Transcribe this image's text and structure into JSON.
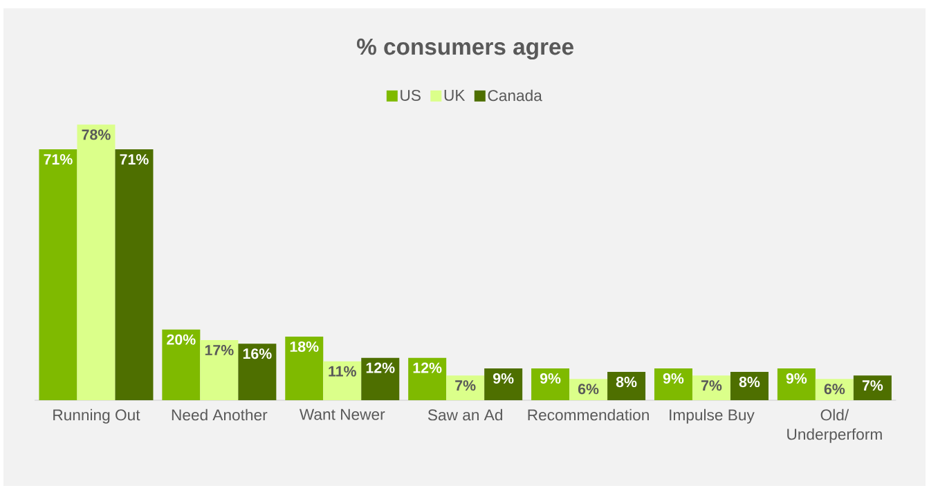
{
  "chart_data": {
    "type": "bar",
    "title": "% consumers agree",
    "categories": [
      "Running Out",
      "Need Another",
      "Want Newer",
      "Saw an Ad",
      "Recommendation",
      "Impulse Buy",
      "Old/ Underperform"
    ],
    "series": [
      {
        "name": "US",
        "color": "#7fba00",
        "values": [
          71,
          20,
          18,
          12,
          9,
          9,
          9
        ],
        "value_labels": [
          "71%",
          "20%",
          "18%",
          "12%",
          "9%",
          "9%",
          "9%"
        ]
      },
      {
        "name": "UK",
        "color": "#dbff8a",
        "values": [
          78,
          17,
          11,
          7,
          6,
          7,
          6
        ],
        "value_labels": [
          "78%",
          "17%",
          "11%",
          "7%",
          "6%",
          "7%",
          "6%"
        ]
      },
      {
        "name": "Canada",
        "color": "#4e6f00",
        "values": [
          71,
          16,
          12,
          9,
          8,
          8,
          7
        ],
        "value_labels": [
          "71%",
          "16%",
          "12%",
          "9%",
          "8%",
          "8%",
          "7%"
        ]
      }
    ],
    "legend": "top",
    "grid": false
  }
}
